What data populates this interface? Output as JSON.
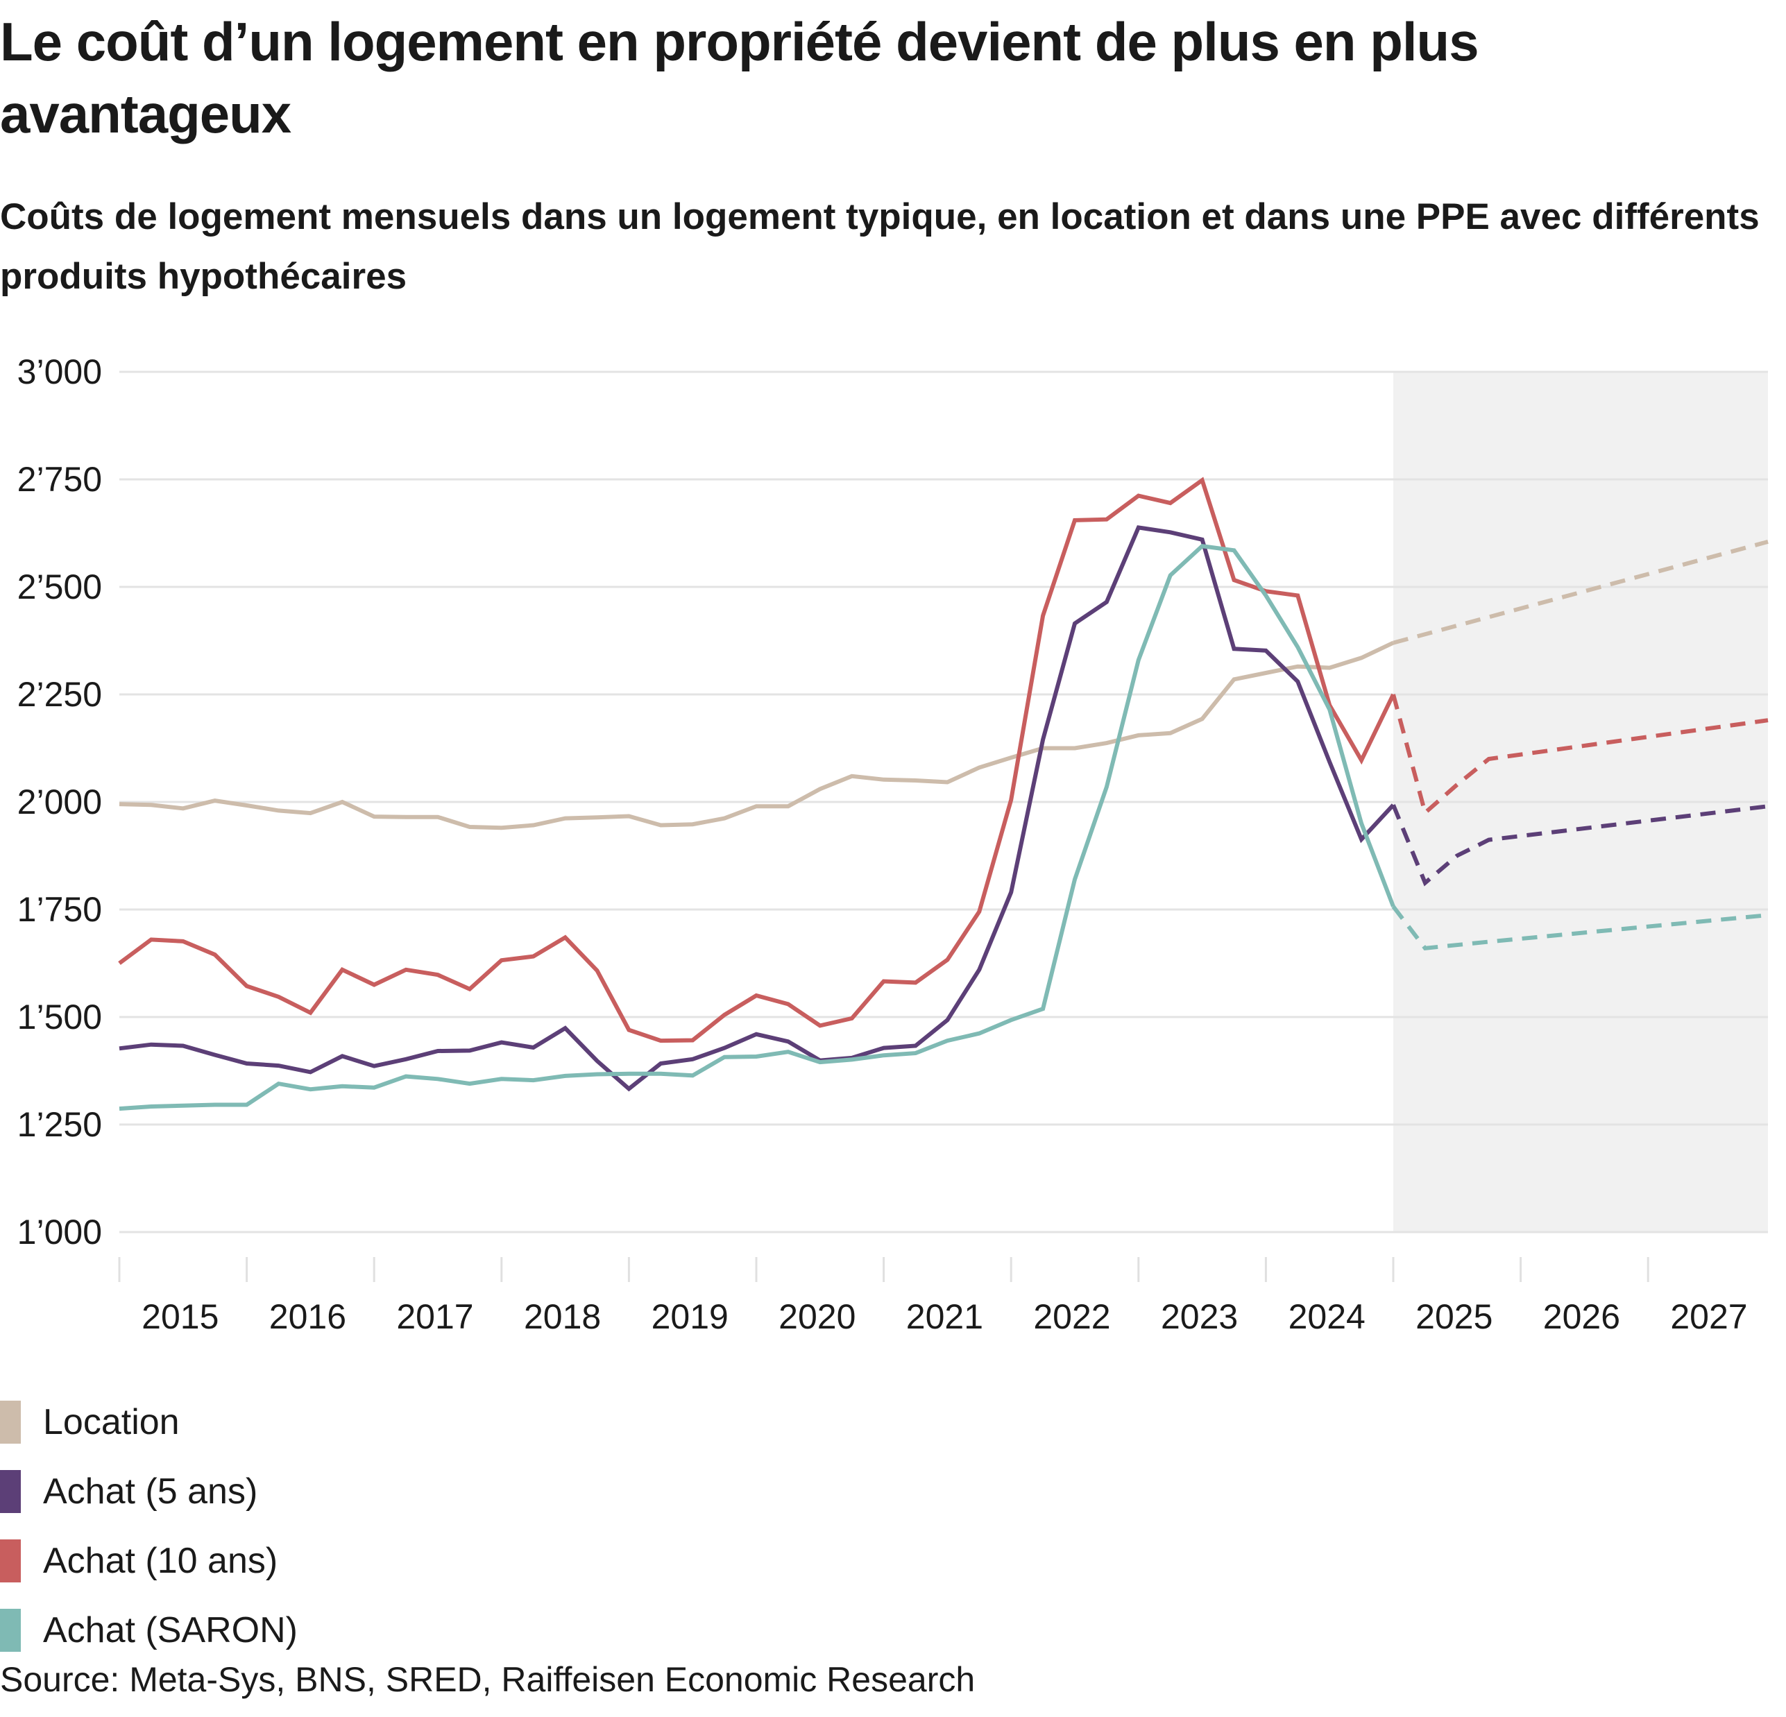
{
  "header": {
    "title": "Le coût d’un logement en propriété devient de plus en plus avantageux",
    "subtitle": "Coûts de logement mensuels dans un logement typique, en location et dans une PPE avec différents produits hypothécaires"
  },
  "legend": [
    {
      "label": "Location",
      "color": "#cdbcab"
    },
    {
      "label": "Achat (5 ans)",
      "color": "#5c3f77"
    },
    {
      "label": "Achat (10 ans)",
      "color": "#c85e5e"
    },
    {
      "label": "Achat (SARON)",
      "color": "#7fbab4"
    }
  ],
  "source": "Source: Meta-Sys, BNS, SRED, Raiffeisen Economic Research",
  "chart_data": {
    "type": "line",
    "title": "Le coût d’un logement en propriété devient de plus en plus avantageux",
    "subtitle": "Coûts de logement mensuels dans un logement typique, en location et dans une PPE avec différents produits hypothécaires",
    "xlabel": "",
    "ylabel": "",
    "x_unit": "quarter",
    "x_start": "2015Q1",
    "x_tick_labels": [
      "2015",
      "2016",
      "2017",
      "2018",
      "2019",
      "2020",
      "2021",
      "2022",
      "2023",
      "2024",
      "2025",
      "2026",
      "2027"
    ],
    "y_tick_labels": [
      "1’000",
      "1’250",
      "1’500",
      "1’750",
      "2’000",
      "2’250",
      "2’500",
      "2’750",
      "3’000"
    ],
    "y_ticks": [
      1000,
      1250,
      1500,
      1750,
      2000,
      2250,
      2500,
      2750,
      3000
    ],
    "ylim": [
      1000,
      3000
    ],
    "xlim_years": [
      2015,
      2027.95
    ],
    "grid": true,
    "forecast_region_start": "2025Q1",
    "forecast_style": "dashed, shaded grey background",
    "legend_position": "bottom-left",
    "series": [
      {
        "name": "Location",
        "color": "#cdbcab",
        "values": [
          1995,
          1993,
          1985,
          2003,
          1992,
          1980,
          1974,
          2000,
          1966,
          1965,
          1965,
          1942,
          1940,
          1946,
          1962,
          1964,
          1967,
          1946,
          1948,
          1962,
          1990,
          1990,
          2030,
          2060,
          2052,
          2050,
          2046,
          2080,
          2103,
          2125,
          2125,
          2137,
          2155,
          2160,
          2193,
          2285,
          2300,
          2315,
          2312,
          2335,
          2370
        ],
        "forecast": {
          "x_quarter_index": [
            40,
            51.8
          ],
          "values": [
            2370,
            2605
          ]
        }
      },
      {
        "name": "Achat (5 ans)",
        "color": "#5c3f77",
        "values": [
          1427,
          1436,
          1433,
          1412,
          1392,
          1387,
          1372,
          1409,
          1386,
          1402,
          1421,
          1422,
          1441,
          1429,
          1474,
          1398,
          1333,
          1392,
          1402,
          1428,
          1460,
          1443,
          1399,
          1405,
          1428,
          1433,
          1493,
          1610,
          1790,
          2145,
          2415,
          2465,
          2638,
          2627,
          2610,
          2356,
          2352,
          2280,
          2093,
          1913,
          1993
        ],
        "forecast": {
          "x_quarter_index": [
            40,
            41,
            42,
            43,
            51.8
          ],
          "values": [
            1993,
            1812,
            1875,
            1912,
            1990
          ]
        }
      },
      {
        "name": "Achat (10 ans)",
        "color": "#c85e5e",
        "values": [
          1625,
          1680,
          1676,
          1645,
          1572,
          1547,
          1510,
          1610,
          1575,
          1610,
          1598,
          1565,
          1632,
          1641,
          1685,
          1608,
          1470,
          1445,
          1446,
          1505,
          1550,
          1530,
          1480,
          1497,
          1583,
          1580,
          1633,
          1745,
          2005,
          2433,
          2655,
          2657,
          2712,
          2695,
          2748,
          2516,
          2490,
          2480,
          2225,
          2097,
          2250
        ],
        "forecast": {
          "x_quarter_index": [
            40,
            41,
            42,
            43,
            51.8
          ],
          "values": [
            2250,
            1975,
            2040,
            2100,
            2190
          ]
        }
      },
      {
        "name": "Achat (SARON)",
        "color": "#7fbab4",
        "values": [
          1287,
          1292,
          1294,
          1296,
          1296,
          1345,
          1332,
          1339,
          1336,
          1362,
          1356,
          1345,
          1356,
          1353,
          1363,
          1367,
          1368,
          1368,
          1364,
          1407,
          1408,
          1419,
          1395,
          1401,
          1411,
          1416,
          1445,
          1462,
          1493,
          1519,
          1820,
          2035,
          2330,
          2527,
          2595,
          2585,
          2480,
          2360,
          2215,
          1950,
          1757
        ],
        "forecast": {
          "x_quarter_index": [
            40,
            41,
            43,
            51.8
          ],
          "values": [
            1757,
            1660,
            1675,
            1737
          ]
        }
      }
    ]
  }
}
